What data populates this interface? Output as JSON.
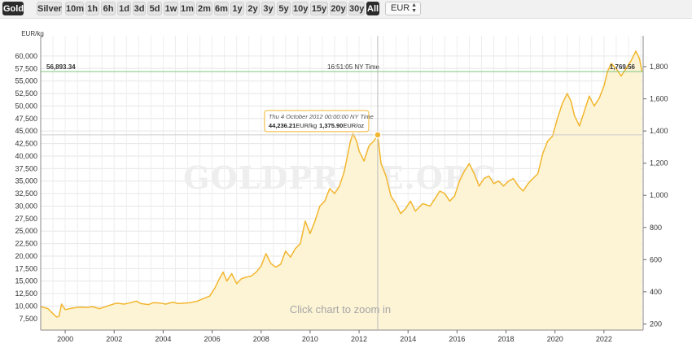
{
  "toolbar": {
    "metals": [
      "Gold",
      "Silver"
    ],
    "active_metal": "Gold",
    "ranges": [
      "10m",
      "1h",
      "6h",
      "1d",
      "3d",
      "5d",
      "1w",
      "1m",
      "2m",
      "6m",
      "1y",
      "2y",
      "3y",
      "5y",
      "10y",
      "15y",
      "20y",
      "30y",
      "All"
    ],
    "active_range": "All",
    "currency": "EUR"
  },
  "chart_data": {
    "type": "area",
    "left_unit": "EUR/kg",
    "right_unit": "",
    "watermark": "GOLDPRICE.ORG",
    "zoom_hint": "Click chart to zoom in",
    "x_ticks": [
      "2000",
      "2002",
      "2004",
      "2006",
      "2008",
      "2010",
      "2012",
      "2014",
      "2016",
      "2018",
      "2020",
      "2022"
    ],
    "x_range": [
      1999.0,
      2023.6
    ],
    "left_ticks": [
      "7,500",
      "10,000",
      "12,500",
      "15,000",
      "17,500",
      "20,000",
      "22,500",
      "25,000",
      "27,500",
      "30,000",
      "32,500",
      "35,000",
      "37,500",
      "40,000",
      "42,500",
      "45,000",
      "47,500",
      "50,000",
      "52,500",
      "55,000",
      "57,500",
      "60,000"
    ],
    "left_range": [
      5200,
      60800
    ],
    "right_ticks": [
      "200",
      "400",
      "600",
      "800",
      "1,000",
      "1,200",
      "1,400",
      "1,600",
      "1,800"
    ],
    "current_line": {
      "left_label": "56,893.34",
      "right_label": "1,769.56",
      "time_label": "16:51:05 NY Time",
      "value": 56893.34
    },
    "tooltip": {
      "date": "Thu 4 October 2012 00:00:00 NY Time",
      "value_kg": "44,236.21",
      "unit_kg": "EUR/kg",
      "value_oz": "1,375.90",
      "unit_oz": "EUR/oz",
      "x": 2012.76,
      "y": 44236.21
    },
    "line_color": "#f2b62e",
    "fill_color": "#fdf4d6",
    "current_line_color": "#7cc57c",
    "series": [
      {
        "x": [
          1999.0,
          1999.3,
          1999.5,
          1999.65,
          1999.75,
          1999.85,
          2000.0,
          2000.3,
          2000.6,
          2000.9,
          2001.1,
          2001.4,
          2001.6,
          2001.9,
          2002.1,
          2002.4,
          2002.6,
          2002.9,
          2003.1,
          2003.4,
          2003.6,
          2003.9,
          2004.1,
          2004.4,
          2004.6,
          2004.9,
          2005.1,
          2005.4,
          2005.7,
          2005.9,
          2006.1,
          2006.3,
          2006.45,
          2006.6,
          2006.8,
          2007.0,
          2007.2,
          2007.4,
          2007.6,
          2007.8,
          2008.0,
          2008.2,
          2008.4,
          2008.6,
          2008.8,
          2009.0,
          2009.2,
          2009.4,
          2009.6,
          2009.8,
          2010.0,
          2010.2,
          2010.4,
          2010.6,
          2010.8,
          2011.0,
          2011.2,
          2011.4,
          2011.65,
          2011.75,
          2011.9,
          2012.0,
          2012.2,
          2012.4,
          2012.6,
          2012.76,
          2012.9,
          2013.1,
          2013.3,
          2013.5,
          2013.7,
          2013.9,
          2014.1,
          2014.3,
          2014.6,
          2014.9,
          2015.1,
          2015.3,
          2015.5,
          2015.7,
          2015.9,
          2016.1,
          2016.3,
          2016.5,
          2016.7,
          2016.9,
          2017.1,
          2017.3,
          2017.5,
          2017.7,
          2017.9,
          2018.1,
          2018.3,
          2018.5,
          2018.7,
          2018.9,
          2019.1,
          2019.3,
          2019.5,
          2019.7,
          2019.9,
          2020.1,
          2020.3,
          2020.5,
          2020.65,
          2020.8,
          2021.0,
          2021.2,
          2021.4,
          2021.6,
          2021.8,
          2022.0,
          2022.15,
          2022.3,
          2022.5,
          2022.7,
          2022.9,
          2023.1,
          2023.3,
          2023.45,
          2023.55
        ],
        "y": [
          9900,
          9500,
          8500,
          7800,
          8000,
          10400,
          9300,
          9600,
          9800,
          9700,
          9900,
          9500,
          9800,
          10300,
          10600,
          10400,
          10600,
          11000,
          10500,
          10300,
          10700,
          10600,
          10400,
          10800,
          10500,
          10600,
          10700,
          11000,
          11600,
          12000,
          13500,
          15500,
          16800,
          15000,
          16500,
          14500,
          15500,
          15800,
          16000,
          16800,
          18000,
          20500,
          18500,
          17800,
          18400,
          21000,
          19800,
          21500,
          22500,
          27000,
          24500,
          27000,
          30000,
          31000,
          33500,
          32500,
          34000,
          37000,
          43000,
          44500,
          43000,
          41000,
          39000,
          42000,
          43000,
          44236,
          38500,
          36000,
          32000,
          30500,
          28500,
          29500,
          31000,
          29000,
          30500,
          30000,
          31500,
          33000,
          32500,
          31000,
          32000,
          35000,
          37000,
          38500,
          36500,
          34000,
          35500,
          36000,
          34500,
          35000,
          34000,
          35000,
          35500,
          34000,
          33000,
          34500,
          35500,
          36500,
          40500,
          43000,
          44000,
          47500,
          50500,
          52500,
          51000,
          48000,
          46000,
          49000,
          52000,
          50000,
          51500,
          54000,
          57000,
          58500,
          57500,
          56000,
          57500,
          59000,
          61000,
          59500,
          56893
        ]
      }
    ]
  }
}
